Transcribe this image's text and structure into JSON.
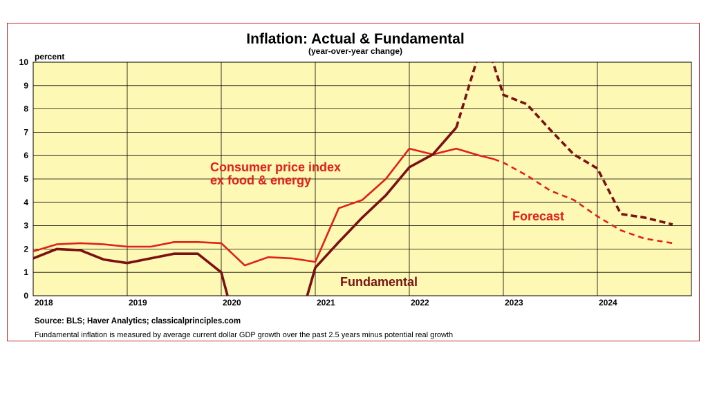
{
  "chart_data": {
    "type": "line",
    "title": "Inflation: Actual & Fundamental",
    "subtitle": "(year-over-year change)",
    "ylabel": "percent",
    "ylim": [
      0,
      10
    ],
    "yticks": [
      0,
      1,
      2,
      3,
      4,
      5,
      6,
      7,
      8,
      9,
      10
    ],
    "xlim": [
      2018,
      2025
    ],
    "xticks": [
      "2018",
      "2019",
      "2020",
      "2021",
      "2022",
      "2023",
      "2024"
    ],
    "grid": true,
    "colors": {
      "plot_bg": "#fdf8b4",
      "cpi": "#e0201b",
      "fundamental": "#7a1214",
      "border": "#c0282d"
    },
    "series": [
      {
        "name": "Consumer price index ex food & energy",
        "style": "solid",
        "x": [
          2018.0,
          2018.25,
          2018.5,
          2018.75,
          2019.0,
          2019.25,
          2019.5,
          2019.75,
          2020.0,
          2020.25,
          2020.5,
          2020.75,
          2021.0,
          2021.25,
          2021.5,
          2021.75,
          2022.0,
          2022.25,
          2022.5,
          2022.75,
          2022.9
        ],
        "y": [
          1.9,
          2.2,
          2.25,
          2.2,
          2.1,
          2.1,
          2.3,
          2.3,
          2.25,
          1.3,
          1.65,
          1.6,
          1.45,
          3.75,
          4.1,
          5.0,
          6.3,
          6.05,
          6.3,
          6.0,
          5.85
        ]
      },
      {
        "name": "Consumer price index forecast",
        "style": "dashed",
        "x": [
          2022.9,
          2023.0,
          2023.25,
          2023.5,
          2023.75,
          2024.0,
          2024.25,
          2024.5,
          2024.8
        ],
        "y": [
          5.85,
          5.7,
          5.15,
          4.5,
          4.1,
          3.4,
          2.8,
          2.45,
          2.25
        ]
      },
      {
        "name": "Fundamental",
        "style": "solid",
        "x": [
          2018.0,
          2018.25,
          2018.5,
          2018.75,
          2019.0,
          2019.25,
          2019.5,
          2019.75,
          2020.0,
          2020.08,
          2020.9,
          2021.0,
          2021.25,
          2021.5,
          2021.75,
          2022.0,
          2022.25,
          2022.5
        ],
        "y": [
          1.6,
          2.0,
          1.95,
          1.55,
          1.4,
          1.6,
          1.8,
          1.8,
          1.0,
          -0.2,
          -0.2,
          1.2,
          2.3,
          3.35,
          4.3,
          5.5,
          6.05,
          7.2
        ]
      },
      {
        "name": "Fundamental forecast",
        "style": "dashed",
        "x": [
          2022.5,
          2022.75,
          2022.85,
          2023.0,
          2023.25,
          2023.5,
          2023.75,
          2024.0,
          2024.25,
          2024.5,
          2024.8
        ],
        "y": [
          7.2,
          10.5,
          10.5,
          8.6,
          8.2,
          7.1,
          6.05,
          5.45,
          3.5,
          3.35,
          3.05
        ]
      }
    ],
    "annotations": [
      {
        "id": "cpi-label-1",
        "text": "Consumer price index"
      },
      {
        "id": "cpi-label-2",
        "text": "ex food & energy"
      },
      {
        "id": "forecast-label",
        "text": "Forecast"
      },
      {
        "id": "fundamental-label",
        "text": "Fundamental"
      }
    ]
  },
  "source": "Source: BLS; Haver Analytics; classicalprinciples.com",
  "footnote": "Fundamental inflation is measured by average current dollar GDP growth over the past 2.5 years minus potential real growth"
}
